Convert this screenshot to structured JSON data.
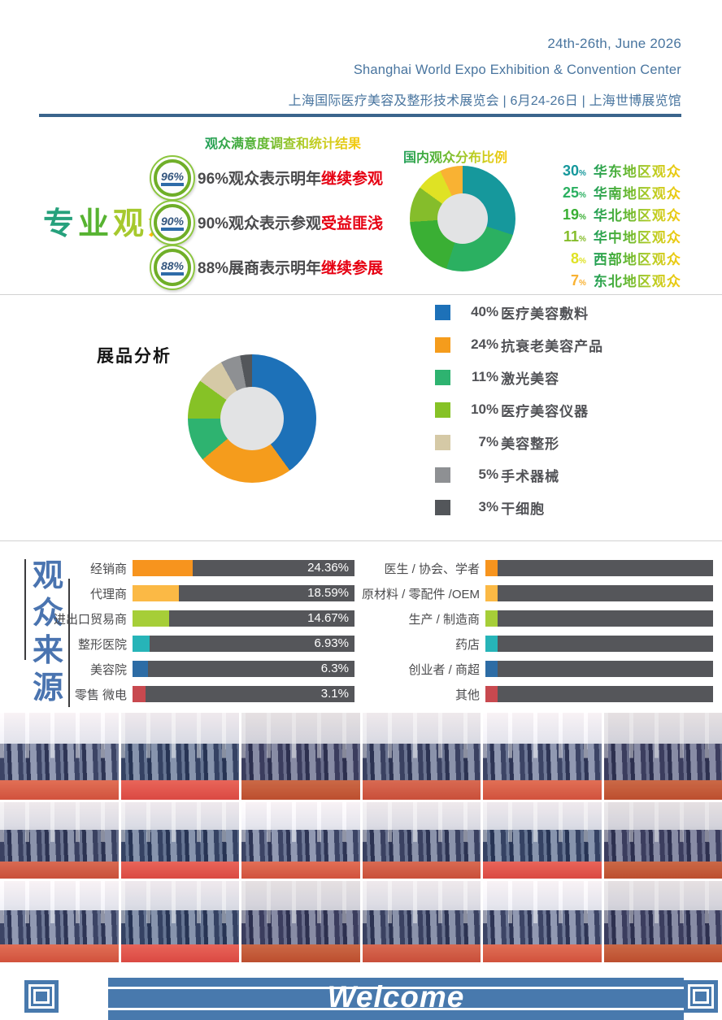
{
  "header": {
    "date_line": "24th-26th, June 2026",
    "venue_line": "Shanghai World Expo Exhibition & Convention Center",
    "cn_line": "上海国际医疗美容及整形技术展览会 | 6月24-26日 | 上海世博展览馆"
  },
  "audience_section": {
    "title": "专业观众",
    "title_chars": [
      {
        "ch": "专",
        "color": "#26a17c"
      },
      {
        "ch": "业",
        "color": "#57b331"
      },
      {
        "ch": "观",
        "color": "#a6c92e"
      },
      {
        "ch": "众",
        "color": "#ffc20e"
      }
    ],
    "survey_title": "观众满意度调查和统计结果",
    "stats": [
      {
        "badge": "96%",
        "prefix": "96%观众表示明年",
        "highlight": "继续参观"
      },
      {
        "badge": "90%",
        "prefix": "90%观众表示参观",
        "highlight": "受益匪浅"
      },
      {
        "badge": "88%",
        "prefix": "88%展商表示明年",
        "highlight": "继续参展"
      }
    ],
    "distribution_title": "国内观众分布比例"
  },
  "exhibits_section": {
    "title": "展品分析"
  },
  "source_section": {
    "title": "观众来源",
    "title_chars": [
      "观",
      "众",
      "来",
      "源"
    ],
    "title_color": "#4a74b0"
  },
  "photo_grid": {
    "rows": 3,
    "columns": 6,
    "content": "exhibition hall crowd photos"
  },
  "footer": {
    "welcome": "Welcome",
    "banner_color": "#4879ad"
  },
  "chart_data": [
    {
      "id": "regional_distribution",
      "type": "pie",
      "donut": true,
      "title": "国内观众分布比例",
      "labels": [
        "华东地区观众",
        "华南地区观众",
        "华北地区观众",
        "华中地区观众",
        "西部地区观众",
        "东北地区观众"
      ],
      "values": [
        30,
        25,
        19,
        11,
        8,
        7
      ],
      "unit": "%",
      "colors": [
        "#16989c",
        "#2bb061",
        "#3aaf34",
        "#85bd2b",
        "#dfe224",
        "#f9b233"
      ],
      "legend_position": "right",
      "start_angle": "12 o'clock, clockwise"
    },
    {
      "id": "exhibit_analysis",
      "type": "pie",
      "donut": true,
      "title": "展品分析",
      "labels": [
        "医疗美容敷料",
        "抗衰老美容产品",
        "激光美容",
        "医疗美容仪器",
        "美容整形",
        "手术器械",
        "干细胞"
      ],
      "values": [
        40,
        24,
        11,
        10,
        7,
        5,
        3
      ],
      "unit": "%",
      "colors": [
        "#1d71b8",
        "#f59c1c",
        "#2eb370",
        "#86c226",
        "#d5c9a6",
        "#8e9093",
        "#53565a"
      ],
      "legend_position": "right",
      "start_angle": "12 o'clock, clockwise"
    },
    {
      "id": "audience_source",
      "type": "bar",
      "orientation": "horizontal",
      "title": "观众来源",
      "bar_track_color": "#55565a",
      "groups": [
        {
          "categories": [
            "经销商",
            "代理商",
            "进出口贸易商",
            "整形医院",
            "美容院",
            "零售 微电"
          ],
          "values": [
            24.36,
            18.59,
            14.67,
            6.93,
            6.3,
            3.1
          ],
          "value_labels": [
            "24.36%",
            "18.59%",
            "14.67%",
            "6.93%",
            "6.3%",
            "3.1%"
          ],
          "seg_colors": [
            "#f7941e",
            "#fbb945",
            "#a6ce38",
            "#27b4b8",
            "#2d6ca5",
            "#c8494f"
          ]
        },
        {
          "categories": [
            "医生 / 协会、学者",
            "原材料 / 零配件 /OEM",
            "生产 / 制造商",
            "药店",
            "创业者 / 商超",
            "其他"
          ],
          "value_labels": [],
          "seg_colors": [
            "#f7941e",
            "#fbb945",
            "#a6ce38",
            "#27b4b8",
            "#2d6ca5",
            "#c8494f"
          ]
        }
      ]
    }
  ]
}
